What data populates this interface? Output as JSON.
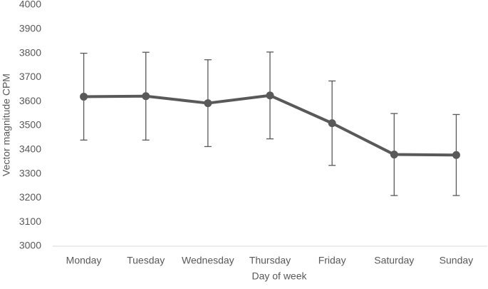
{
  "chart_data": {
    "type": "line",
    "xlabel": "Day of week",
    "ylabel": "Vector magnitude CPM",
    "categories": [
      "Monday",
      "Tuesday",
      "Wednesday",
      "Thursday",
      "Friday",
      "Saturday",
      "Sunday"
    ],
    "series": [
      {
        "color": "#595959",
        "values": [
          3620,
          3622,
          3593,
          3625,
          3510,
          3380,
          3378
        ],
        "errors": [
          180,
          182,
          180,
          180,
          175,
          170,
          168
        ]
      }
    ],
    "ylim": [
      3000,
      4000
    ],
    "yticks": [
      3000,
      3100,
      3200,
      3300,
      3400,
      3500,
      3600,
      3700,
      3800,
      3900,
      4000
    ],
    "grid": false
  }
}
